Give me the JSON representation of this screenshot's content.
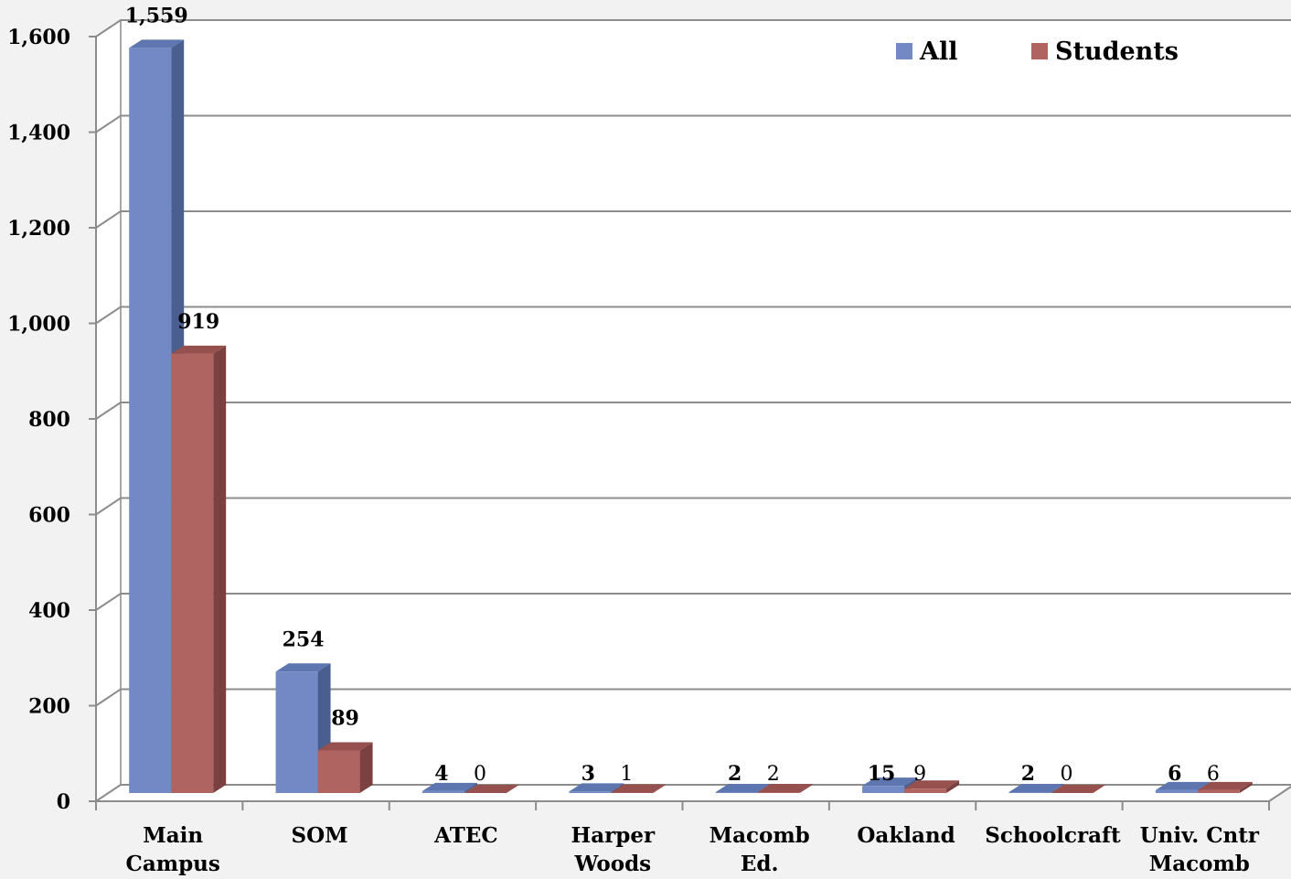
{
  "chart_data": {
    "type": "bar",
    "style": "3d-clustered",
    "categories": [
      [
        "Main",
        "Campus"
      ],
      [
        "SOM"
      ],
      [
        "ATEC"
      ],
      [
        "Harper",
        "Woods"
      ],
      [
        "Macomb",
        "Ed."
      ],
      [
        "Oakland"
      ],
      [
        "Schoolcraft"
      ],
      [
        "Univ. Cntr",
        "Macomb"
      ]
    ],
    "series": [
      {
        "name": "All",
        "values": [
          1559,
          254,
          4,
          3,
          2,
          15,
          2,
          6
        ],
        "color": "#7289c5",
        "side_color": "#4a5f8f",
        "top_color": "#5e76b0"
      },
      {
        "name": "Students",
        "values": [
          919,
          89,
          0,
          1,
          2,
          9,
          0,
          6
        ],
        "color": "#b06462",
        "side_color": "#7b4140",
        "top_color": "#96504e"
      }
    ],
    "data_labels": {
      "All": [
        "1,559",
        "254",
        "4",
        "3",
        "2",
        "15",
        "2",
        "6"
      ],
      "Students": [
        "919",
        "89",
        "0",
        "1",
        "2",
        "9",
        "0",
        "6"
      ]
    },
    "y_ticks": [
      "0",
      "200",
      "400",
      "600",
      "800",
      "1,000",
      "1,200",
      "1,400",
      "1,600"
    ],
    "ylim": [
      0,
      1600
    ],
    "grid": true,
    "legend_position": "top-right",
    "title": "",
    "xlabel": "",
    "ylabel": ""
  }
}
